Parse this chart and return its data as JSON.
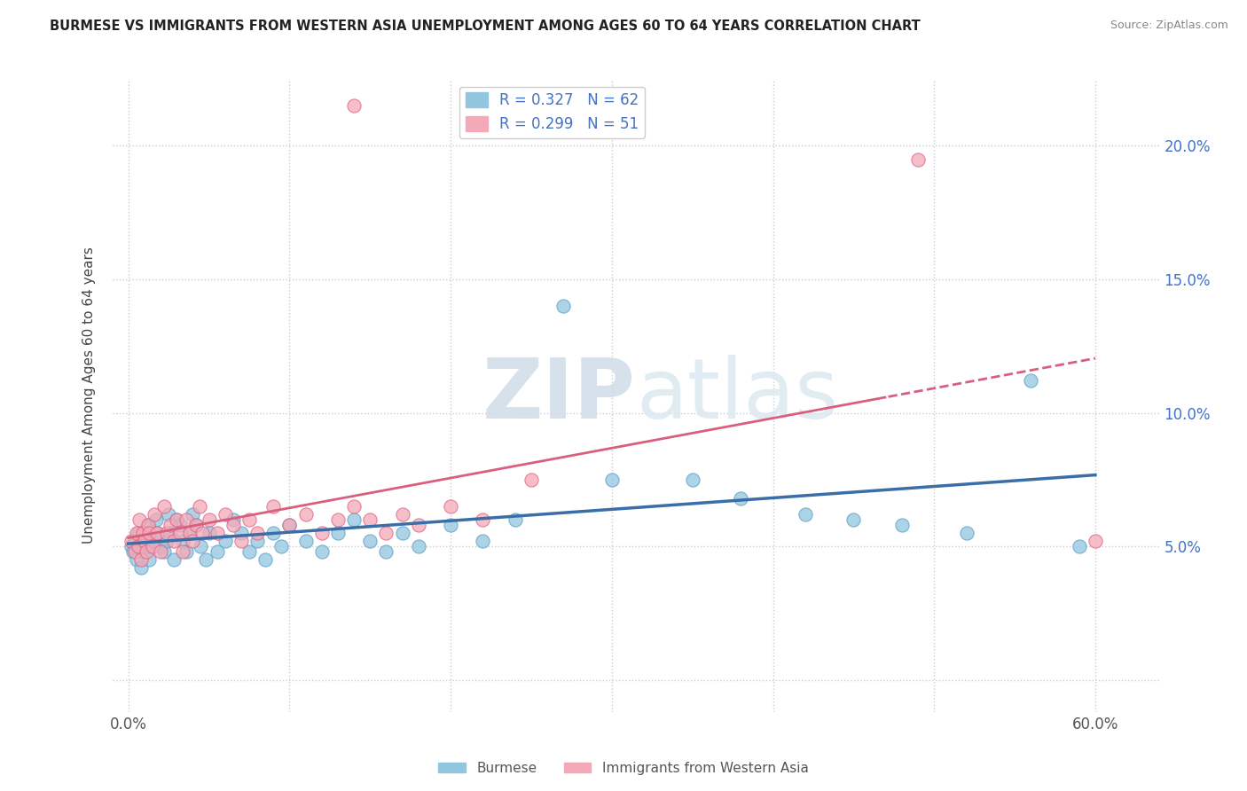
{
  "title": "BURMESE VS IMMIGRANTS FROM WESTERN ASIA UNEMPLOYMENT AMONG AGES 60 TO 64 YEARS CORRELATION CHART",
  "source": "Source: ZipAtlas.com",
  "ylabel": "Unemployment Among Ages 60 to 64 years",
  "burmese_color": "#92c5de",
  "burmese_edge_color": "#5a9fc8",
  "western_asia_color": "#f4a9b8",
  "western_asia_edge_color": "#e06080",
  "burmese_line_color": "#3a6ea8",
  "western_asia_line_color": "#d95f7f",
  "R_burmese": 0.327,
  "N_burmese": 62,
  "R_western": 0.299,
  "N_western": 51,
  "burmese_scatter": [
    [
      0.002,
      0.05
    ],
    [
      0.003,
      0.048
    ],
    [
      0.004,
      0.052
    ],
    [
      0.005,
      0.045
    ],
    [
      0.006,
      0.055
    ],
    [
      0.007,
      0.05
    ],
    [
      0.008,
      0.042
    ],
    [
      0.009,
      0.048
    ],
    [
      0.01,
      0.055
    ],
    [
      0.011,
      0.05
    ],
    [
      0.012,
      0.058
    ],
    [
      0.013,
      0.045
    ],
    [
      0.015,
      0.052
    ],
    [
      0.017,
      0.06
    ],
    [
      0.018,
      0.055
    ],
    [
      0.02,
      0.05
    ],
    [
      0.022,
      0.048
    ],
    [
      0.024,
      0.052
    ],
    [
      0.025,
      0.062
    ],
    [
      0.026,
      0.055
    ],
    [
      0.028,
      0.045
    ],
    [
      0.03,
      0.06
    ],
    [
      0.032,
      0.058
    ],
    [
      0.034,
      0.052
    ],
    [
      0.036,
      0.048
    ],
    [
      0.038,
      0.055
    ],
    [
      0.04,
      0.062
    ],
    [
      0.042,
      0.058
    ],
    [
      0.045,
      0.05
    ],
    [
      0.048,
      0.045
    ],
    [
      0.05,
      0.055
    ],
    [
      0.055,
      0.048
    ],
    [
      0.06,
      0.052
    ],
    [
      0.065,
      0.06
    ],
    [
      0.07,
      0.055
    ],
    [
      0.075,
      0.048
    ],
    [
      0.08,
      0.052
    ],
    [
      0.085,
      0.045
    ],
    [
      0.09,
      0.055
    ],
    [
      0.095,
      0.05
    ],
    [
      0.1,
      0.058
    ],
    [
      0.11,
      0.052
    ],
    [
      0.12,
      0.048
    ],
    [
      0.13,
      0.055
    ],
    [
      0.14,
      0.06
    ],
    [
      0.15,
      0.052
    ],
    [
      0.16,
      0.048
    ],
    [
      0.17,
      0.055
    ],
    [
      0.18,
      0.05
    ],
    [
      0.2,
      0.058
    ],
    [
      0.22,
      0.052
    ],
    [
      0.24,
      0.06
    ],
    [
      0.27,
      0.14
    ],
    [
      0.3,
      0.075
    ],
    [
      0.35,
      0.075
    ],
    [
      0.38,
      0.068
    ],
    [
      0.42,
      0.062
    ],
    [
      0.45,
      0.06
    ],
    [
      0.48,
      0.058
    ],
    [
      0.52,
      0.055
    ],
    [
      0.56,
      0.112
    ],
    [
      0.59,
      0.05
    ]
  ],
  "western_scatter": [
    [
      0.002,
      0.052
    ],
    [
      0.004,
      0.048
    ],
    [
      0.005,
      0.055
    ],
    [
      0.006,
      0.05
    ],
    [
      0.007,
      0.06
    ],
    [
      0.008,
      0.045
    ],
    [
      0.009,
      0.055
    ],
    [
      0.01,
      0.052
    ],
    [
      0.011,
      0.048
    ],
    [
      0.012,
      0.058
    ],
    [
      0.013,
      0.055
    ],
    [
      0.015,
      0.05
    ],
    [
      0.016,
      0.062
    ],
    [
      0.018,
      0.055
    ],
    [
      0.02,
      0.048
    ],
    [
      0.022,
      0.065
    ],
    [
      0.024,
      0.055
    ],
    [
      0.026,
      0.058
    ],
    [
      0.028,
      0.052
    ],
    [
      0.03,
      0.06
    ],
    [
      0.032,
      0.055
    ],
    [
      0.034,
      0.048
    ],
    [
      0.036,
      0.06
    ],
    [
      0.038,
      0.055
    ],
    [
      0.04,
      0.052
    ],
    [
      0.042,
      0.058
    ],
    [
      0.044,
      0.065
    ],
    [
      0.046,
      0.055
    ],
    [
      0.05,
      0.06
    ],
    [
      0.055,
      0.055
    ],
    [
      0.06,
      0.062
    ],
    [
      0.065,
      0.058
    ],
    [
      0.07,
      0.052
    ],
    [
      0.075,
      0.06
    ],
    [
      0.08,
      0.055
    ],
    [
      0.09,
      0.065
    ],
    [
      0.1,
      0.058
    ],
    [
      0.11,
      0.062
    ],
    [
      0.12,
      0.055
    ],
    [
      0.13,
      0.06
    ],
    [
      0.14,
      0.065
    ],
    [
      0.15,
      0.06
    ],
    [
      0.16,
      0.055
    ],
    [
      0.17,
      0.062
    ],
    [
      0.18,
      0.058
    ],
    [
      0.2,
      0.065
    ],
    [
      0.22,
      0.06
    ],
    [
      0.25,
      0.075
    ],
    [
      0.14,
      0.215
    ],
    [
      0.49,
      0.195
    ],
    [
      0.6,
      0.052
    ]
  ],
  "xlim": [
    -0.01,
    0.64
  ],
  "ylim": [
    -0.012,
    0.225
  ],
  "x_ticks": [
    0.0,
    0.1,
    0.2,
    0.3,
    0.4,
    0.5,
    0.6
  ],
  "x_tick_labels": [
    "0.0%",
    "",
    "",
    "",
    "",
    "",
    "60.0%"
  ],
  "y_ticks": [
    0.0,
    0.05,
    0.1,
    0.15,
    0.2
  ],
  "y_tick_labels_right": [
    "",
    "5.0%",
    "10.0%",
    "15.0%",
    "20.0%"
  ]
}
